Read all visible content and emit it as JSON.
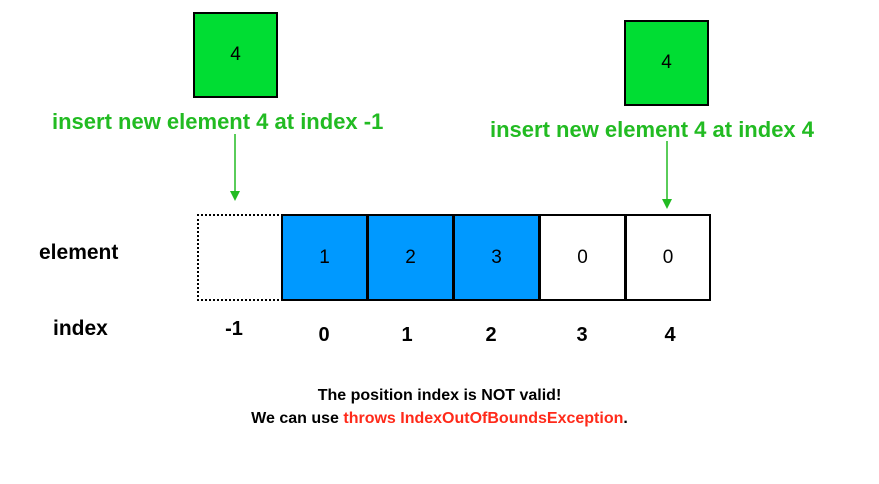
{
  "left_insert": {
    "value": "4",
    "caption": "insert new element 4 at index -1"
  },
  "right_insert": {
    "value": "4",
    "caption": "insert new element 4 at index 4"
  },
  "labels": {
    "element": "element",
    "index": "index"
  },
  "cells": [
    {
      "value": "",
      "index": "-1",
      "state": "invalid"
    },
    {
      "value": "1",
      "index": "0",
      "state": "filled"
    },
    {
      "value": "2",
      "index": "1",
      "state": "filled"
    },
    {
      "value": "3",
      "index": "2",
      "state": "filled"
    },
    {
      "value": "0",
      "index": "3",
      "state": "empty"
    },
    {
      "value": "0",
      "index": "4",
      "state": "empty"
    }
  ],
  "message": {
    "line1": "The position index is NOT valid!",
    "line2_prefix": "We can use ",
    "line2_highlight": "throws IndexOutOfBoundsException",
    "line2_suffix": "."
  },
  "colors": {
    "new_element": "#00dd33",
    "caption": "#22bb22",
    "filled_cell": "#0099ff",
    "empty_cell": "#ffffff",
    "highlight": "#ff2a1a"
  }
}
